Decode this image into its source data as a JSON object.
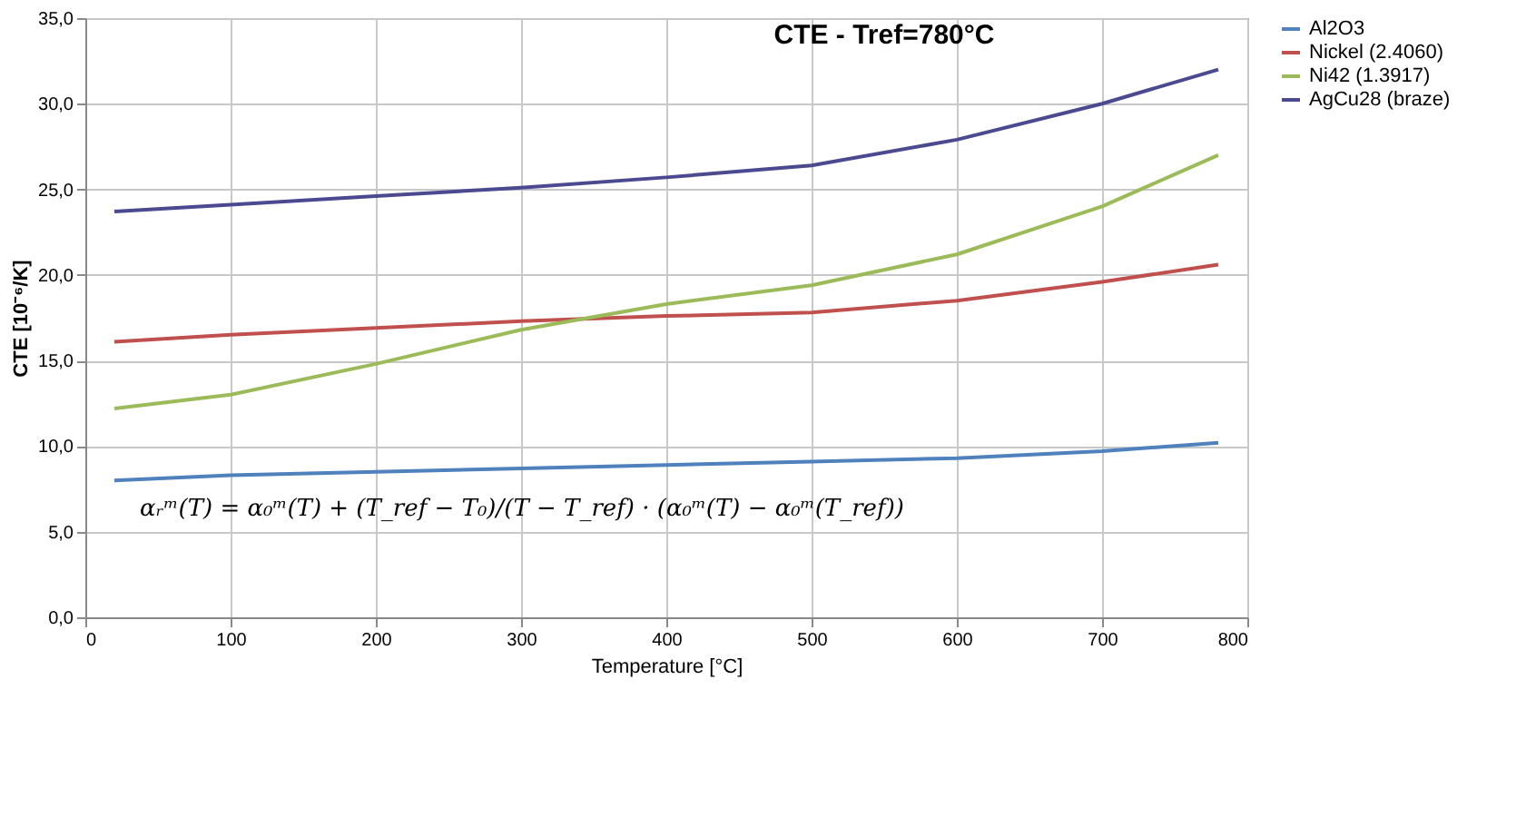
{
  "chart_data": {
    "type": "line",
    "title": "CTE - Tref=780°C",
    "xlabel": "Temperature [°C]",
    "ylabel": "CTE [10⁻⁶/K]",
    "x": [
      20,
      100,
      200,
      300,
      400,
      500,
      600,
      700,
      780
    ],
    "series": [
      {
        "name": "Al2O3",
        "color": "#4f81bd",
        "values": [
          8.0,
          8.3,
          8.5,
          8.7,
          8.9,
          9.1,
          9.3,
          9.7,
          10.2
        ]
      },
      {
        "name": "Nickel (2.4060)",
        "color": "#c0504d",
        "values": [
          16.1,
          16.5,
          16.9,
          17.3,
          17.6,
          17.8,
          18.5,
          19.6,
          20.6
        ]
      },
      {
        "name": "Ni42 (1.3917)",
        "color": "#9bbb59",
        "values": [
          12.2,
          13.0,
          14.8,
          16.8,
          18.3,
          19.4,
          21.2,
          24.0,
          27.0
        ]
      },
      {
        "name": "AgCu28 (braze)",
        "color": "#4b4a91",
        "values": [
          23.7,
          24.1,
          24.6,
          25.1,
          25.7,
          26.4,
          27.9,
          30.0,
          32.0
        ]
      }
    ],
    "xlim": [
      0,
      800
    ],
    "xticks": [
      0,
      100,
      200,
      300,
      400,
      500,
      600,
      700,
      800
    ],
    "ylim": [
      0,
      35
    ],
    "yticks": [
      {
        "value": 0,
        "label": "0,0"
      },
      {
        "value": 5,
        "label": "5,0"
      },
      {
        "value": 10,
        "label": "10,0"
      },
      {
        "value": 15,
        "label": "15,0"
      },
      {
        "value": 20,
        "label": "20,0"
      },
      {
        "value": 25,
        "label": "25,0"
      },
      {
        "value": 30,
        "label": "30,0"
      },
      {
        "value": 35,
        "label": "35,0"
      }
    ],
    "annotations": [
      "αᵣᵐ(T) = α₀ᵐ(T) + (T_ref − T₀)/(T − T_ref) · (α₀ᵐ(T) − α₀ᵐ(T_ref))"
    ],
    "grid": true,
    "legend": "right",
    "line_style": "solid",
    "marker": "none"
  }
}
